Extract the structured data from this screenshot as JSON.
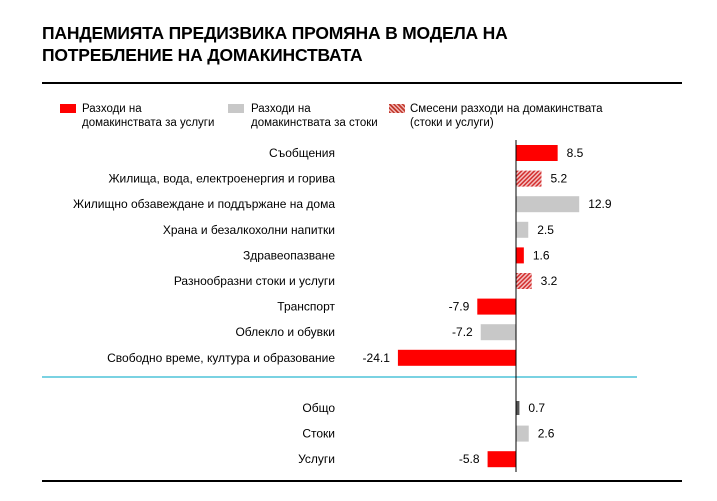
{
  "title_line1": "ПАНДЕМИЯТА ПРЕДИЗВИКА ПРОМЯНА В МОДЕЛА НА",
  "title_line2": "ПОТРЕБЛЕНИЕ НА ДОМАКИНСТВАТА",
  "legend": {
    "services_line1": "Разходи на",
    "services_line2": "домакинствата за услуги",
    "goods_line1": "Разходи на",
    "goods_line2": "домакинствата за стоки",
    "mixed_line1": "Смесени разходи на домакинствата",
    "mixed_line2": "(стоки и услуги)"
  },
  "colors": {
    "services": "#ff0000",
    "goods": "#c8c8c8",
    "mixed": "#e57373",
    "separator": "#4fc3d9",
    "total": "#555555"
  },
  "chart_data": {
    "type": "bar",
    "orientation": "horizontal",
    "title": "ПАНДЕМИЯТА ПРЕДИЗВИКА ПРОМЯНА В МОДЕЛА НА ПОТРЕБЛЕНИЕ НА ДОМАКИНСТВАТА",
    "xlim": [
      -25,
      14
    ],
    "grid": false,
    "legend_position": "top",
    "groups": [
      {
        "items": [
          {
            "category": "Съобщения",
            "value": 8.5,
            "value_label": "8.5",
            "kind": "services"
          },
          {
            "category": "Жилища,  вода, електроенергия и горива",
            "value": 5.2,
            "value_label": "5.2",
            "kind": "mixed"
          },
          {
            "category": "Жилищно  обзавеждане и поддържане на дома",
            "value": 12.9,
            "value_label": "12.9",
            "kind": "goods"
          },
          {
            "category": "Храна и безалкохолни напитки",
            "value": 2.5,
            "value_label": "2.5",
            "kind": "goods"
          },
          {
            "category": "Здравеопазване",
            "value": 1.6,
            "value_label": "1.6",
            "kind": "services"
          },
          {
            "category": "Разнообразни стоки и услуги",
            "value": 3.2,
            "value_label": "3.2",
            "kind": "mixed"
          },
          {
            "category": "Транспорт",
            "value": -7.9,
            "value_label": "-7.9",
            "kind": "services"
          },
          {
            "category": "Облекло и обувки",
            "value": -7.2,
            "value_label": "-7.2",
            "kind": "goods"
          },
          {
            "category": "Свободно време, култура и образование",
            "value": -24.1,
            "value_label": "-24.1",
            "kind": "services"
          }
        ]
      },
      {
        "items": [
          {
            "category": "Общо",
            "value": 0.7,
            "value_label": "0.7",
            "kind": "total"
          },
          {
            "category": "Стоки",
            "value": 2.6,
            "value_label": "2.6",
            "kind": "goods"
          },
          {
            "category": "Услуги",
            "value": -5.8,
            "value_label": "-5.8",
            "kind": "services"
          }
        ]
      }
    ]
  }
}
